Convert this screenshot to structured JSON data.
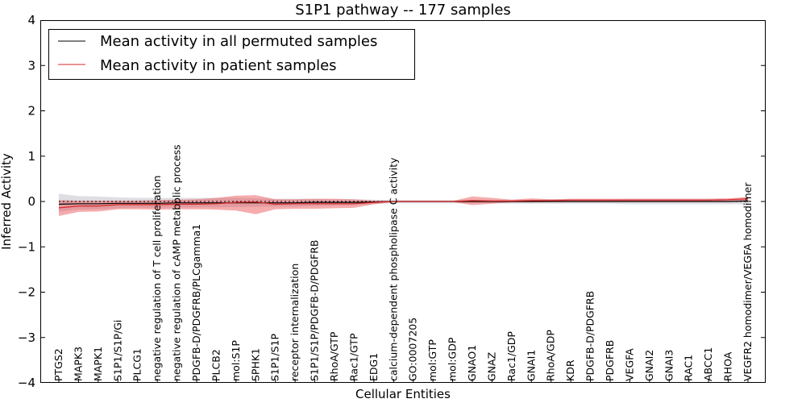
{
  "chart_data": {
    "type": "line",
    "title": "S1P1 pathway -- 177 samples",
    "xlabel": "Cellular Entities",
    "ylabel": "Inferred Activity",
    "ylim": [
      -4,
      4
    ],
    "yticks": [
      4,
      3,
      2,
      1,
      0,
      -1,
      -2,
      -3,
      -4
    ],
    "ytick_labels": [
      "4",
      "3",
      "2",
      "1",
      "0",
      "−1",
      "−2",
      "−3",
      "−4"
    ],
    "legend_position": "top-left",
    "categories": [
      "PTGS2",
      "MAPK3",
      "MAPK1",
      "S1P1/S1P/Gi",
      "PLCG1",
      "negative regulation of T cell proliferation",
      "negative regulation of cAMP metabolic process",
      "PDGFB-D/PDGFRB/PLCgamma1",
      "PLCB2",
      "mol:S1P",
      "SPHK1",
      "S1P1/S1P",
      "receptor internalization",
      "S1P1/S1P/PDGFB-D/PDGFRB",
      "RhoA/GTP",
      "Rac1/GTP",
      "EDG1",
      "calcium-dependent phospholipase C activity",
      "GO:0007205",
      "mol:GTP",
      "mol:GDP",
      "GNAO1",
      "GNAZ",
      "Rac1/GDP",
      "GNAI1",
      "RhoA/GDP",
      "KDR",
      "PDGFB-D/PDGFRB",
      "PDGFRB",
      "VEGFA",
      "GNAI2",
      "GNAI3",
      "RAC1",
      "ABCC1",
      "RHOA",
      "VEGFR2 homodimer/VEGFA homodimer"
    ],
    "series": [
      {
        "name": "Mean activity in all permuted samples",
        "color": "#000000",
        "values": [
          -0.06,
          -0.05,
          -0.05,
          -0.04,
          -0.04,
          -0.04,
          -0.03,
          -0.03,
          -0.03,
          -0.03,
          -0.03,
          -0.03,
          -0.03,
          -0.02,
          -0.02,
          -0.02,
          -0.01,
          0.0,
          0.0,
          0.0,
          0.0,
          0.0,
          0.0,
          0.0,
          0.0,
          0.0,
          0.0,
          0.0,
          0.0,
          0.0,
          0.0,
          0.0,
          0.0,
          0.0,
          0.0,
          0.01
        ],
        "band_upper": [
          0.17,
          0.12,
          0.11,
          0.09,
          0.08,
          0.08,
          0.08,
          0.08,
          0.08,
          0.08,
          0.07,
          0.06,
          0.06,
          0.06,
          0.05,
          0.05,
          0.04,
          0.03,
          0.03,
          0.03,
          0.03,
          0.03,
          0.03,
          0.04,
          0.04,
          0.05,
          0.05,
          0.05,
          0.05,
          0.06,
          0.06,
          0.06,
          0.06,
          0.06,
          0.06,
          0.06
        ],
        "band_lower": [
          -0.22,
          -0.18,
          -0.17,
          -0.15,
          -0.14,
          -0.14,
          -0.13,
          -0.13,
          -0.13,
          -0.12,
          -0.12,
          -0.11,
          -0.11,
          -0.1,
          -0.09,
          -0.08,
          -0.06,
          -0.04,
          -0.04,
          -0.04,
          -0.04,
          -0.04,
          -0.04,
          -0.05,
          -0.05,
          -0.05,
          -0.05,
          -0.05,
          -0.05,
          -0.06,
          -0.06,
          -0.06,
          -0.06,
          -0.06,
          -0.06,
          -0.06
        ]
      },
      {
        "name": "Mean activity in patient samples",
        "color": "#d62728",
        "values": [
          -0.14,
          -0.1,
          -0.1,
          -0.07,
          -0.07,
          -0.07,
          -0.06,
          -0.06,
          -0.05,
          -0.02,
          -0.01,
          -0.06,
          -0.05,
          -0.05,
          -0.05,
          -0.05,
          -0.02,
          0.0,
          0.0,
          0.0,
          0.0,
          0.02,
          0.01,
          0.01,
          0.02,
          0.02,
          0.03,
          0.03,
          0.03,
          0.03,
          0.03,
          0.03,
          0.03,
          0.03,
          0.04,
          0.06
        ],
        "band_upper": [
          0.03,
          0.02,
          0.02,
          0.02,
          0.02,
          0.03,
          0.04,
          0.05,
          0.08,
          0.13,
          0.14,
          0.05,
          0.05,
          0.06,
          0.06,
          0.05,
          0.02,
          0.01,
          0.01,
          0.01,
          0.01,
          0.11,
          0.08,
          0.04,
          0.07,
          0.05,
          0.06,
          0.06,
          0.06,
          0.06,
          0.06,
          0.06,
          0.06,
          0.06,
          0.07,
          0.1
        ],
        "band_lower": [
          -0.32,
          -0.23,
          -0.22,
          -0.17,
          -0.17,
          -0.18,
          -0.17,
          -0.17,
          -0.18,
          -0.2,
          -0.28,
          -0.17,
          -0.16,
          -0.16,
          -0.15,
          -0.14,
          -0.06,
          -0.01,
          -0.01,
          -0.01,
          -0.01,
          -0.08,
          -0.05,
          -0.02,
          -0.02,
          -0.01,
          -0.01,
          -0.01,
          -0.01,
          -0.01,
          -0.01,
          -0.01,
          -0.01,
          -0.01,
          0.0,
          0.02
        ]
      }
    ]
  }
}
